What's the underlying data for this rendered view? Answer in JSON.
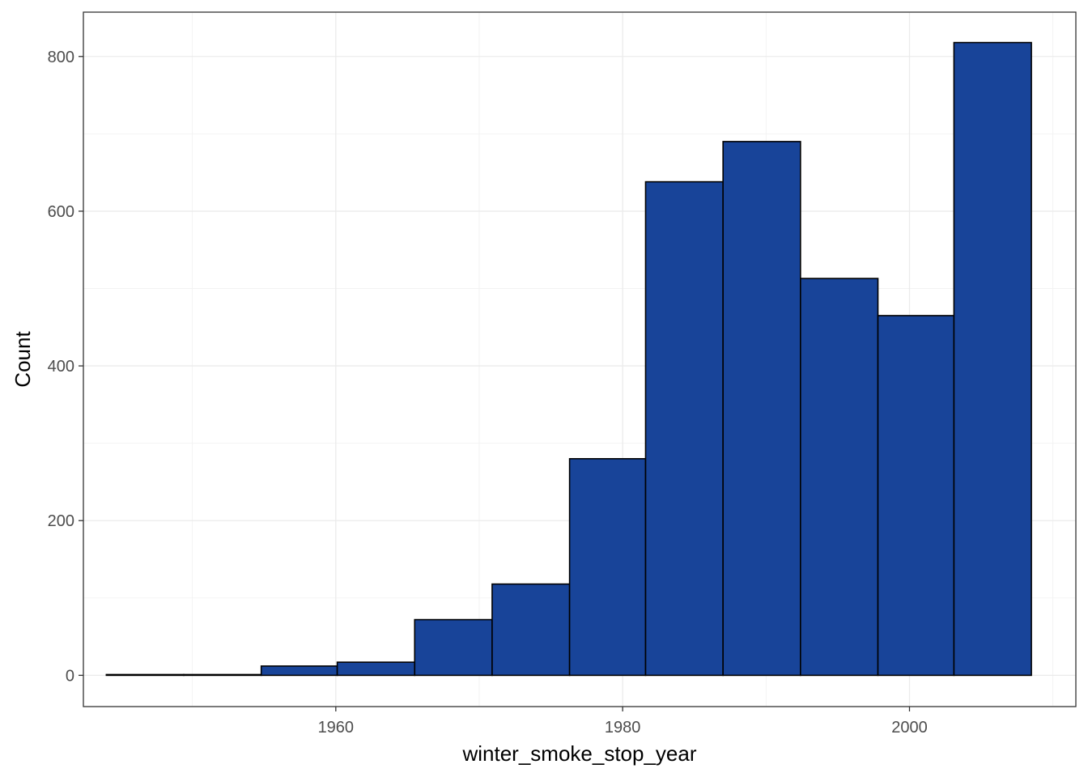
{
  "chart_data": {
    "type": "bar",
    "subtype": "histogram",
    "xlabel": "winter_smoke_stop_year",
    "ylabel": "Count",
    "xlim": [
      1942.4,
      2011.6
    ],
    "ylim": [
      -40.4,
      857.3
    ],
    "x_ticks": [
      1960,
      1980,
      2000
    ],
    "x_tick_labels": [
      "1960",
      "1980",
      "2000"
    ],
    "y_ticks": [
      0,
      200,
      400,
      600,
      800
    ],
    "y_tick_labels": [
      "0",
      "200",
      "400",
      "600",
      "800"
    ],
    "bins": [
      {
        "x_start": 1944.0,
        "x_end": 1949.4,
        "count": 1
      },
      {
        "x_start": 1949.4,
        "x_end": 1954.8,
        "count": 1
      },
      {
        "x_start": 1954.8,
        "x_end": 1960.1,
        "count": 12
      },
      {
        "x_start": 1960.1,
        "x_end": 1965.5,
        "count": 17
      },
      {
        "x_start": 1965.5,
        "x_end": 1970.9,
        "count": 72
      },
      {
        "x_start": 1970.9,
        "x_end": 1976.3,
        "count": 118
      },
      {
        "x_start": 1976.3,
        "x_end": 1981.6,
        "count": 280
      },
      {
        "x_start": 1981.6,
        "x_end": 1987.0,
        "count": 638
      },
      {
        "x_start": 1987.0,
        "x_end": 1992.4,
        "count": 690
      },
      {
        "x_start": 1992.4,
        "x_end": 1997.8,
        "count": 513
      },
      {
        "x_start": 1997.8,
        "x_end": 2003.1,
        "count": 465
      },
      {
        "x_start": 2003.1,
        "x_end": 2008.5,
        "count": 818
      }
    ],
    "fill_color": "#184499",
    "outline_color": "#000000",
    "grid": true,
    "theme": "bw"
  }
}
